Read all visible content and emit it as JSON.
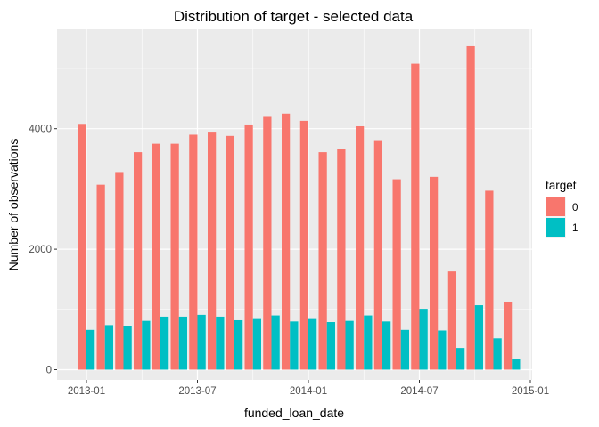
{
  "chart_data": {
    "type": "bar",
    "title": "Distribution of target - selected data",
    "xlabel": "funded_loan_date",
    "ylabel": "Number of observations",
    "categories": [
      "2013-01",
      "2013-02",
      "2013-03",
      "2013-04",
      "2013-05",
      "2013-06",
      "2013-07",
      "2013-08",
      "2013-09",
      "2013-10",
      "2013-11",
      "2013-12",
      "2014-01",
      "2014-02",
      "2014-03",
      "2014-04",
      "2014-05",
      "2014-06",
      "2014-07",
      "2014-08",
      "2014-09",
      "2014-10",
      "2014-11",
      "2014-12"
    ],
    "x_ticks": [
      "2013-01",
      "2013-07",
      "2014-01",
      "2014-07",
      "2015-01"
    ],
    "y_ticks": [
      0,
      2000,
      4000
    ],
    "ylim": [
      -170,
      5650
    ],
    "grid": true,
    "legend": {
      "title": "target",
      "placement": "right",
      "entries": [
        {
          "label": "0",
          "color": "#F8766D"
        },
        {
          "label": "1",
          "color": "#00BFC4"
        }
      ]
    },
    "series": [
      {
        "name": "0",
        "color": "#F8766D",
        "values": [
          4080,
          3070,
          3280,
          3610,
          3750,
          3750,
          3900,
          3950,
          3880,
          4070,
          4210,
          4250,
          4130,
          3610,
          3670,
          4040,
          3810,
          3160,
          5080,
          3200,
          1630,
          5370,
          2970,
          1130
        ]
      },
      {
        "name": "1",
        "color": "#00BFC4",
        "values": [
          660,
          740,
          730,
          810,
          880,
          880,
          910,
          880,
          820,
          840,
          900,
          800,
          840,
          790,
          810,
          900,
          800,
          660,
          1010,
          650,
          360,
          1070,
          520,
          180
        ]
      }
    ]
  }
}
